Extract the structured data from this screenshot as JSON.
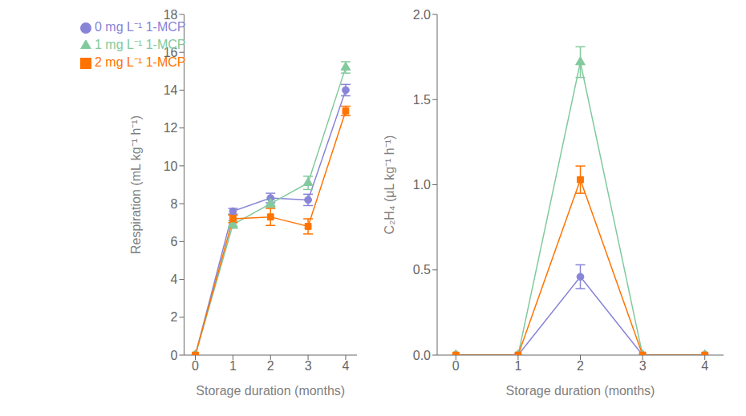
{
  "chart_data": [
    {
      "type": "line",
      "x": [
        0,
        1,
        2,
        3,
        4
      ],
      "xlim": [
        -0.3,
        4.3
      ],
      "xticks": [
        0,
        1,
        2,
        3,
        4
      ],
      "ylim": [
        0,
        18
      ],
      "yticks": [
        0,
        2,
        4,
        6,
        8,
        10,
        12,
        14,
        16,
        18
      ],
      "xlabel": "Storage duration (months)",
      "ylabel": "Respiration (mL kg⁻¹ h⁻¹)",
      "legend": "upper left",
      "series": [
        {
          "name": "0 mg L⁻¹ 1-MCP",
          "color": "#8884d8",
          "marker": "circle",
          "values": [
            0.0,
            7.6,
            8.3,
            8.2,
            14.0
          ],
          "yerr": [
            0.0,
            0.15,
            0.25,
            0.3,
            0.3
          ]
        },
        {
          "name": "1 mg L⁻¹ 1-MCP",
          "color": "#82ca9d",
          "marker": "triangle",
          "values": [
            0.0,
            6.9,
            8.0,
            9.1,
            15.2
          ],
          "yerr": [
            0.0,
            0.2,
            0.2,
            0.35,
            0.3
          ]
        },
        {
          "name": "2 mg L⁻¹ 1-MCP",
          "color": "#ff7300",
          "marker": "square",
          "values": [
            0.0,
            7.2,
            7.3,
            6.8,
            12.9
          ],
          "yerr": [
            0.0,
            0.2,
            0.45,
            0.4,
            0.25
          ]
        }
      ]
    },
    {
      "type": "line",
      "x": [
        0,
        1,
        2,
        3,
        4
      ],
      "xlim": [
        -0.3,
        4.3
      ],
      "xticks": [
        0,
        1,
        2,
        3,
        4
      ],
      "ylim": [
        0,
        2.0
      ],
      "yticks": [
        {
          "value": 0,
          "label": "0.0"
        },
        0.5,
        {
          "value": 1,
          "label": "1.0"
        },
        1.5,
        {
          "value": 2,
          "label": "2.0"
        }
      ],
      "xlabel": "Storage duration (months)",
      "ylabel": "C₂H₄ (μL kg⁻¹ h⁻¹)",
      "series": [
        {
          "name": "0 mg L⁻¹ 1-MCP",
          "color": "#8884d8",
          "marker": "circle",
          "values": [
            0.0,
            0.0,
            0.46,
            0.0,
            0.0
          ],
          "yerr": [
            0.0,
            0.0,
            0.07,
            0.0,
            0.0
          ]
        },
        {
          "name": "1 mg L⁻¹ 1-MCP",
          "color": "#82ca9d",
          "marker": "triangle",
          "values": [
            0.0,
            0.0,
            1.72,
            0.0,
            0.0
          ],
          "yerr": [
            0.0,
            0.0,
            0.09,
            0.0,
            0.0
          ]
        },
        {
          "name": "2 mg L⁻¹ 1-MCP",
          "color": "#ff7300",
          "marker": "square",
          "values": [
            0.0,
            0.0,
            1.03,
            0.0,
            0.0
          ],
          "yerr": [
            0.0,
            0.0,
            0.08,
            0.0,
            0.0
          ]
        }
      ]
    }
  ]
}
